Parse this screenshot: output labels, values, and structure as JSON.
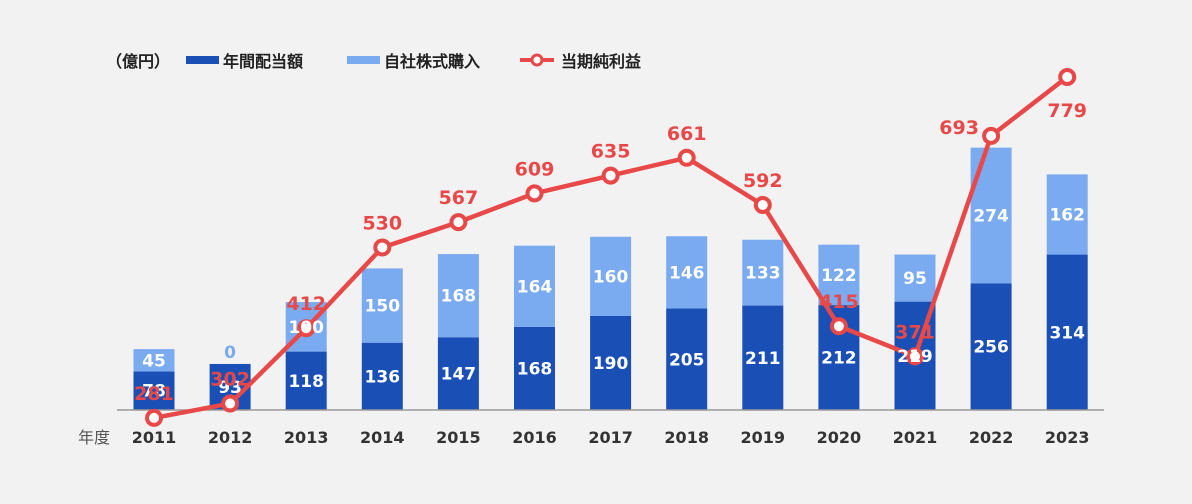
{
  "chart_data": {
    "type": "bar",
    "unit_label": "（億円）",
    "x_axis_title": "年度",
    "categories": [
      "2011",
      "2012",
      "2013",
      "2014",
      "2015",
      "2016",
      "2017",
      "2018",
      "2019",
      "2020",
      "2021",
      "2022",
      "2023"
    ],
    "series": [
      {
        "name": "年間配当額",
        "kind": "stacked-bar",
        "color": "#1a4fb5",
        "values": [
          78,
          93,
          118,
          136,
          147,
          168,
          190,
          205,
          211,
          212,
          219,
          256,
          314
        ]
      },
      {
        "name": "自社株式購入",
        "kind": "stacked-bar",
        "color": "#7aaaf0",
        "values": [
          45,
          0,
          100,
          150,
          168,
          164,
          160,
          146,
          133,
          122,
          95,
          274,
          162
        ]
      },
      {
        "name": "当期純利益",
        "kind": "line",
        "color": "#e84848",
        "values": [
          281,
          302,
          412,
          530,
          567,
          609,
          635,
          661,
          592,
          415,
          371,
          693,
          779
        ]
      }
    ],
    "legend_position": "top-left",
    "grid": false
  }
}
